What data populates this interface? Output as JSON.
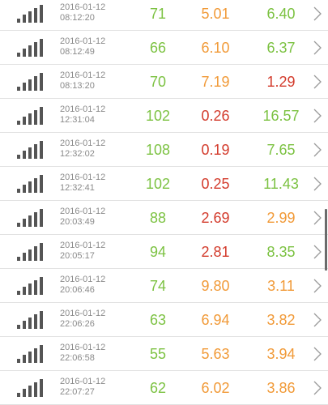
{
  "colors": {
    "green": "#7cc242",
    "orange": "#f19a38",
    "red": "#d33b2c",
    "timestamp": "#8a8a8a",
    "signal": "#555555"
  },
  "icons": {
    "row_icon": "signal-bars-icon",
    "row_action": "chevron-right-icon"
  },
  "rows": [
    {
      "date": "2016-01-12",
      "time": "08:12:20",
      "v1": "71",
      "v1_color": "green",
      "v2": "5.01",
      "v2_color": "orange",
      "v3": "6.40",
      "v3_color": "green"
    },
    {
      "date": "2016-01-12",
      "time": "08:12:49",
      "v1": "66",
      "v1_color": "green",
      "v2": "6.10",
      "v2_color": "orange",
      "v3": "6.37",
      "v3_color": "green"
    },
    {
      "date": "2016-01-12",
      "time": "08:13:20",
      "v1": "70",
      "v1_color": "green",
      "v2": "7.19",
      "v2_color": "orange",
      "v3": "1.29",
      "v3_color": "red"
    },
    {
      "date": "2016-01-12",
      "time": "12:31:04",
      "v1": "102",
      "v1_color": "green",
      "v2": "0.26",
      "v2_color": "red",
      "v3": "16.57",
      "v3_color": "green"
    },
    {
      "date": "2016-01-12",
      "time": "12:32:02",
      "v1": "108",
      "v1_color": "green",
      "v2": "0.19",
      "v2_color": "red",
      "v3": "7.65",
      "v3_color": "green"
    },
    {
      "date": "2016-01-12",
      "time": "12:32:41",
      "v1": "102",
      "v1_color": "green",
      "v2": "0.25",
      "v2_color": "red",
      "v3": "11.43",
      "v3_color": "green"
    },
    {
      "date": "2016-01-12",
      "time": "20:03:49",
      "v1": "88",
      "v1_color": "green",
      "v2": "2.69",
      "v2_color": "red",
      "v3": "2.99",
      "v3_color": "orange"
    },
    {
      "date": "2016-01-12",
      "time": "20:05:17",
      "v1": "94",
      "v1_color": "green",
      "v2": "2.81",
      "v2_color": "red",
      "v3": "8.35",
      "v3_color": "green"
    },
    {
      "date": "2016-01-12",
      "time": "20:06:46",
      "v1": "74",
      "v1_color": "green",
      "v2": "9.80",
      "v2_color": "orange",
      "v3": "3.11",
      "v3_color": "orange"
    },
    {
      "date": "2016-01-12",
      "time": "22:06:26",
      "v1": "63",
      "v1_color": "green",
      "v2": "6.94",
      "v2_color": "orange",
      "v3": "3.82",
      "v3_color": "orange"
    },
    {
      "date": "2016-01-12",
      "time": "22:06:58",
      "v1": "55",
      "v1_color": "green",
      "v2": "5.63",
      "v2_color": "orange",
      "v3": "3.94",
      "v3_color": "orange"
    },
    {
      "date": "2016-01-12",
      "time": "22:07:27",
      "v1": "62",
      "v1_color": "green",
      "v2": "6.02",
      "v2_color": "orange",
      "v3": "3.86",
      "v3_color": "orange"
    }
  ]
}
